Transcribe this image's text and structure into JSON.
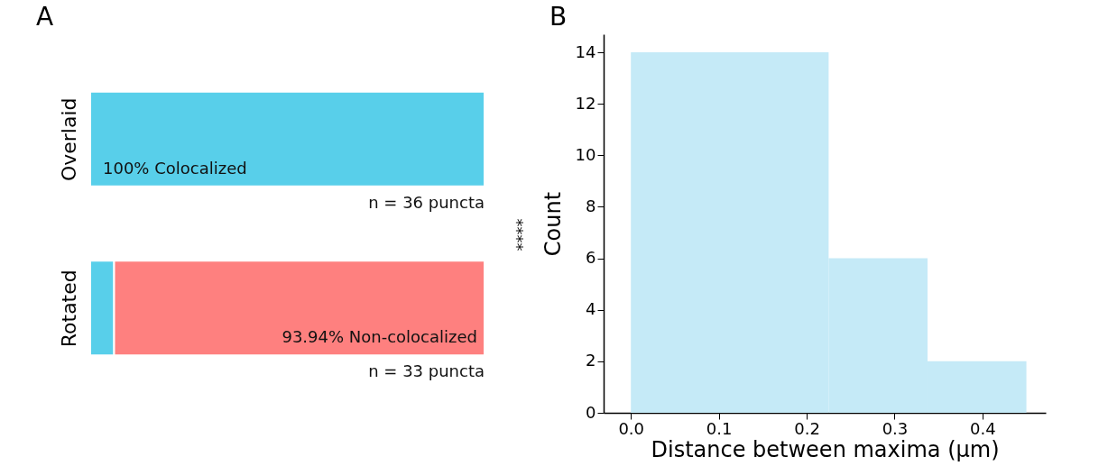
{
  "chart_data": [
    {
      "type": "bar",
      "title": "A",
      "orientation": "horizontal",
      "stacked": true,
      "categories": [
        "Overlaid",
        "Rotated"
      ],
      "xlim": [
        0,
        100
      ],
      "tick_labels": "y",
      "series": [
        {
          "color": "#58cfea",
          "values": [
            100,
            6.06
          ],
          "value_labels": [
            "100% Colocalized",
            null
          ]
        },
        {
          "color": "#fe807f",
          "values": [
            null,
            93.94
          ],
          "value_labels": [
            null,
            "93.94% Non-colocalized"
          ]
        }
      ],
      "annotations": [
        "n = 36 puncta",
        "n = 33 puncta",
        "****"
      ]
    },
    {
      "type": "histogram",
      "title": "B",
      "bins": [
        0,
        0.225,
        0.3375,
        0.45
      ],
      "values": [
        14,
        6,
        2
      ],
      "color": "#c5eaf7",
      "xlabel": "Distance between maxima (μm)",
      "ylabel": "Count",
      "xlim": [
        -0.031,
        0.472
      ],
      "xticks": [
        {
          "value": 0,
          "label": "0.0"
        },
        0.1,
        0.2,
        0.3,
        0.4
      ],
      "ylim": [
        0,
        14.7
      ],
      "yticks": [
        0,
        2,
        4,
        6,
        8,
        10,
        12,
        14
      ]
    }
  ]
}
